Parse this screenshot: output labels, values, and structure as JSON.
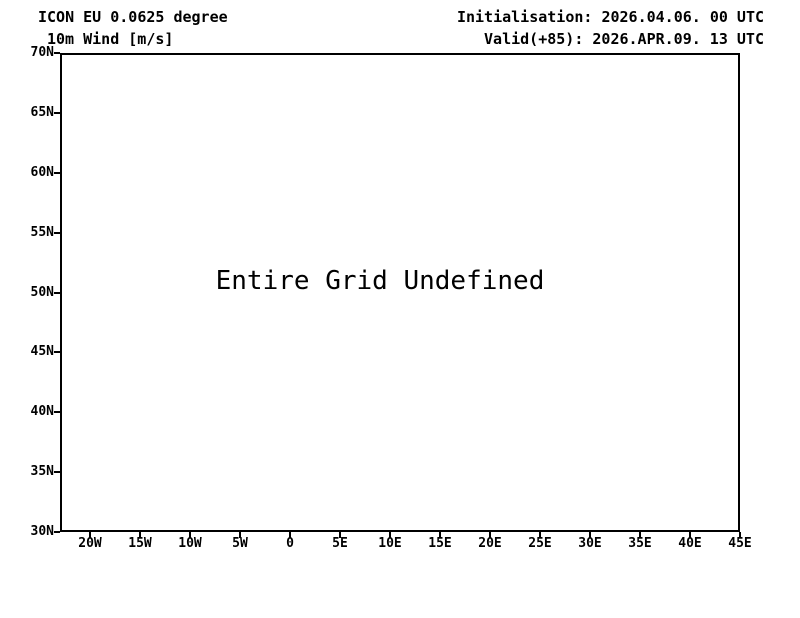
{
  "page": {
    "background_color": "#ffffff",
    "foreground_color": "#000000"
  },
  "header": {
    "model_title": "ICON EU 0.0625 degree",
    "field_title": "10m Wind [m/s]",
    "init_time": "Initialisation: 2026.04.06. 00 UTC",
    "valid_time": "Valid(+85): 2026.APR.09. 13 UTC"
  },
  "plot": {
    "message": "Entire Grid Undefined",
    "y_axis_labels": [
      "70N",
      "65N",
      "60N",
      "55N",
      "50N",
      "45N",
      "40N",
      "35N",
      "30N"
    ],
    "x_axis_labels": [
      "20W",
      "15W",
      "10W",
      "5W",
      "0",
      "5E",
      "10E",
      "15E",
      "20E",
      "25E",
      "30E",
      "35E",
      "40E",
      "45E"
    ]
  },
  "chart_data": {
    "type": "heatmap",
    "title": "ICON EU 0.0625 degree",
    "subtitle": "10m Wind [m/s]",
    "annotations": [
      "Entire Grid Undefined"
    ],
    "x_tick_labels": [
      "20W",
      "15W",
      "10W",
      "5W",
      "0",
      "5E",
      "10E",
      "15E",
      "20E",
      "25E",
      "30E",
      "35E",
      "40E",
      "45E"
    ],
    "y_tick_labels": [
      "70N",
      "65N",
      "60N",
      "55N",
      "50N",
      "45N",
      "40N",
      "35N",
      "30N"
    ],
    "series": [],
    "values": [],
    "grid": false,
    "legend_position": "none",
    "notes": "Empty lat/lon map frame; no data rendered (entire grid undefined)."
  }
}
